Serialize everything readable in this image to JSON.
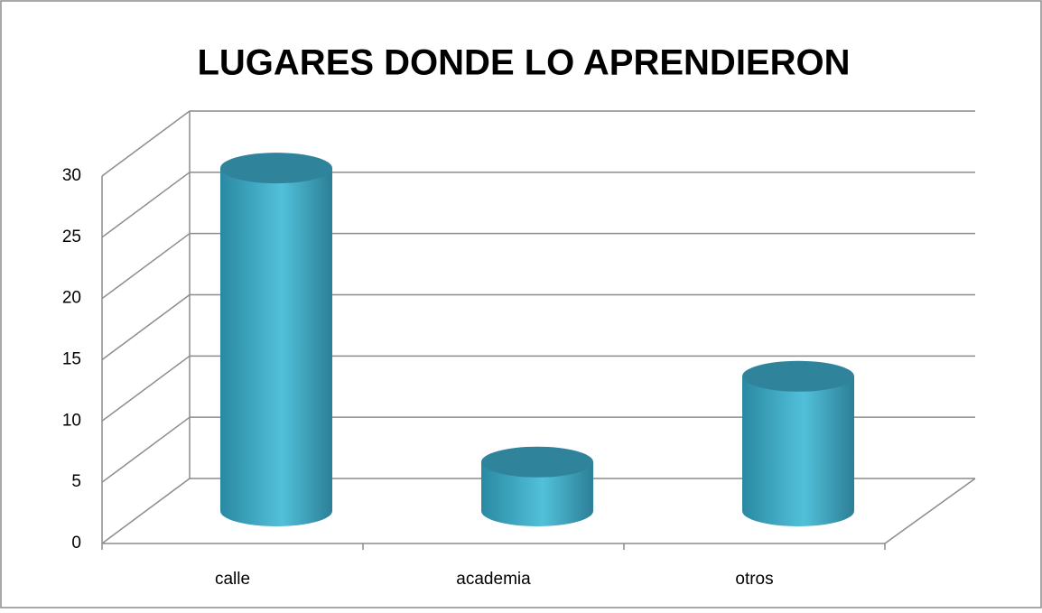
{
  "chart_data": {
    "type": "bar3d",
    "title": "LUGARES DONDE LO APRENDIERON",
    "categories": [
      "calle",
      "academia",
      "otros"
    ],
    "values": [
      28,
      4,
      11
    ],
    "color": "#3aa9c4",
    "ylim": [
      0,
      30
    ],
    "yticks": [
      0,
      5,
      10,
      15,
      20,
      25,
      30
    ],
    "grid": true
  }
}
